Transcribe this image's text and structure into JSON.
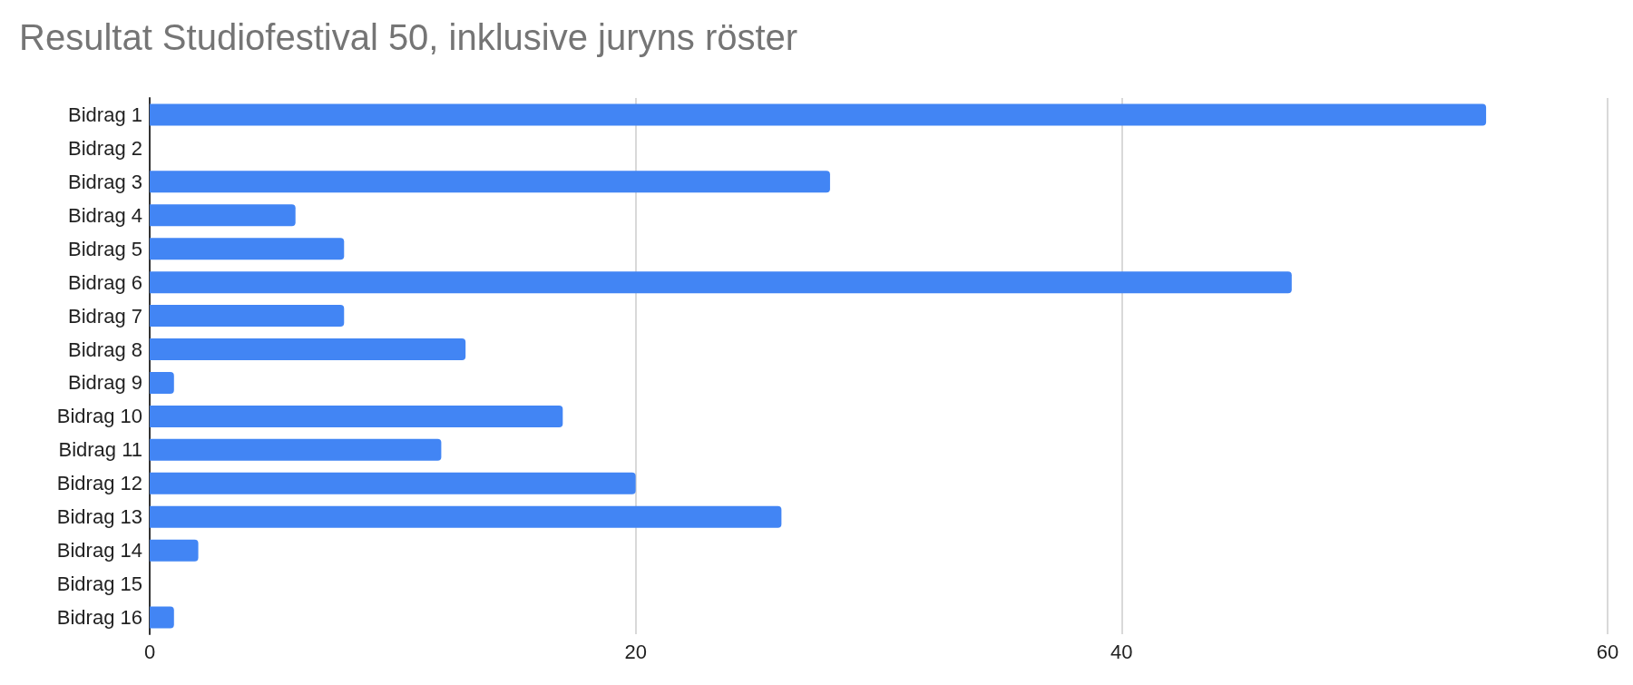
{
  "chart_data": {
    "type": "bar",
    "orientation": "horizontal",
    "title": "Resultat Studiofestival 50, inklusive juryns röster",
    "categories": [
      "Bidrag 1",
      "Bidrag 2",
      "Bidrag 3",
      "Bidrag 4",
      "Bidrag 5",
      "Bidrag 6",
      "Bidrag 7",
      "Bidrag 8",
      "Bidrag 9",
      "Bidrag 10",
      "Bidrag 11",
      "Bidrag 12",
      "Bidrag 13",
      "Bidrag 14",
      "Bidrag 15",
      "Bidrag 16"
    ],
    "values": [
      55,
      0,
      28,
      6,
      8,
      47,
      8,
      13,
      1,
      17,
      12,
      20,
      26,
      2,
      0,
      1
    ],
    "color": "#4285f4",
    "xlim": [
      0,
      60
    ],
    "xticks": [
      0,
      20,
      40,
      60
    ],
    "grid": "x"
  }
}
